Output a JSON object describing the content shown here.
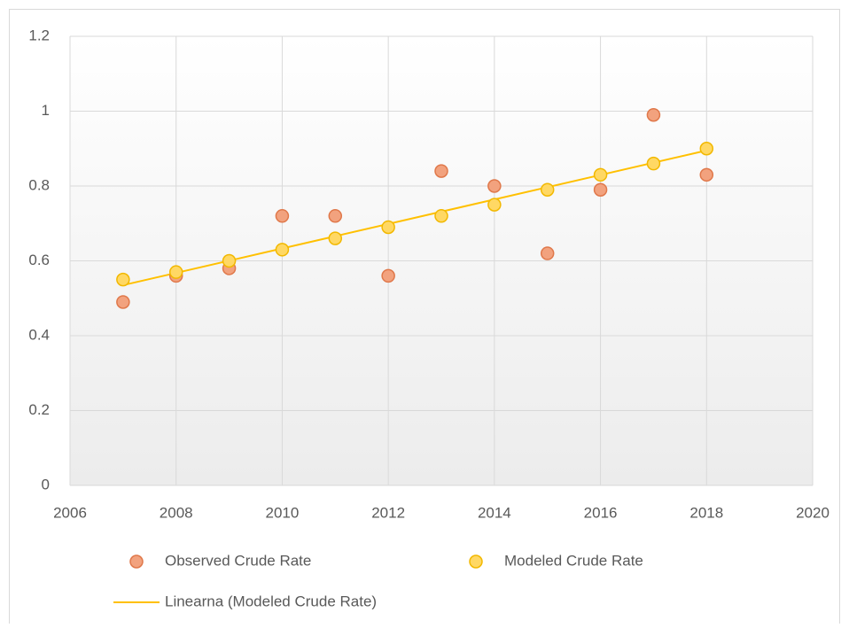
{
  "chart_data": {
    "type": "scatter",
    "xlim": [
      2006,
      2020
    ],
    "xticks": [
      2006,
      2008,
      2010,
      2012,
      2014,
      2016,
      2018,
      2020
    ],
    "ylim": [
      0,
      1.2
    ],
    "yticks": [
      0,
      0.2,
      0.4,
      0.6,
      0.8,
      1,
      1.2
    ],
    "grid": true,
    "x": [
      2007,
      2008,
      2009,
      2010,
      2011,
      2012,
      2013,
      2014,
      2015,
      2016,
      2017,
      2018
    ],
    "series": [
      {
        "name": "Observed Crude Rate",
        "color": "#f2a27e",
        "values": [
          0.49,
          0.56,
          0.58,
          0.72,
          0.72,
          0.56,
          0.84,
          0.8,
          0.62,
          0.79,
          0.99,
          0.83
        ]
      },
      {
        "name": "Modeled Crude Rate",
        "color": "#ffd864",
        "values": [
          0.55,
          0.57,
          0.6,
          0.63,
          0.66,
          0.69,
          0.72,
          0.75,
          0.79,
          0.83,
          0.86,
          0.9
        ]
      }
    ],
    "trendline": {
      "name": "Linearna (Modeled Crude Rate)",
      "color": "#ffc000",
      "x": [
        2007,
        2018
      ],
      "values": [
        0.535,
        0.895
      ]
    },
    "legend": "bottom"
  }
}
